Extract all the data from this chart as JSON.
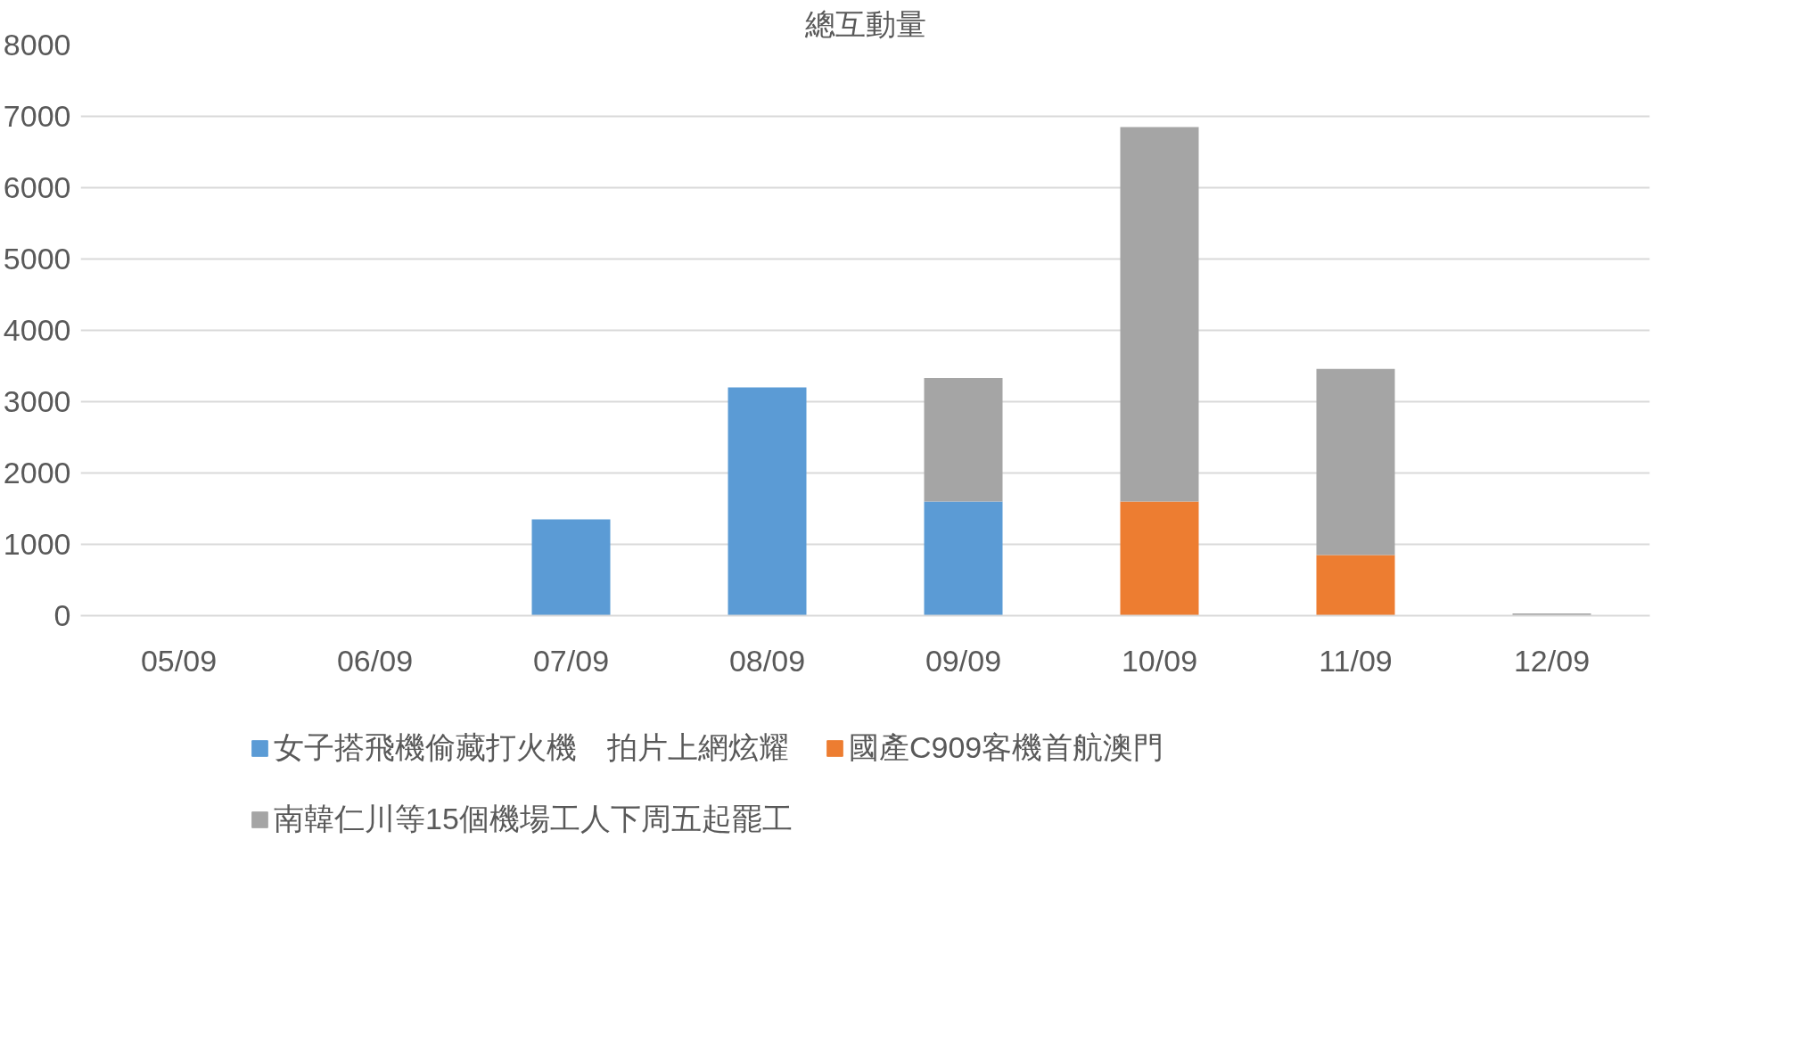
{
  "chart_data": {
    "type": "bar",
    "title": "總互動量",
    "stacked": true,
    "categories": [
      "05/09",
      "06/09",
      "07/09",
      "08/09",
      "09/09",
      "10/09",
      "11/09",
      "12/09"
    ],
    "series": [
      {
        "name": "女子搭飛機偷藏打火機　拍片上網炫耀",
        "color": "#5b9bd5",
        "values": [
          null,
          null,
          1350,
          3200,
          1600,
          null,
          null,
          null
        ]
      },
      {
        "name": "國產C909客機首航澳門",
        "color": "#ed7d31",
        "values": [
          null,
          null,
          null,
          null,
          null,
          1600,
          850,
          null
        ]
      },
      {
        "name": "南韓仁川等15個機場工人下周五起罷工",
        "color": "#a5a5a5",
        "values": [
          null,
          null,
          null,
          null,
          1730,
          5250,
          2610,
          30
        ]
      }
    ],
    "ylim": [
      0,
      8000
    ],
    "yticks": [
      0,
      1000,
      2000,
      3000,
      4000,
      5000,
      6000,
      7000,
      8000
    ],
    "grid": "y",
    "legend": "bottom"
  }
}
